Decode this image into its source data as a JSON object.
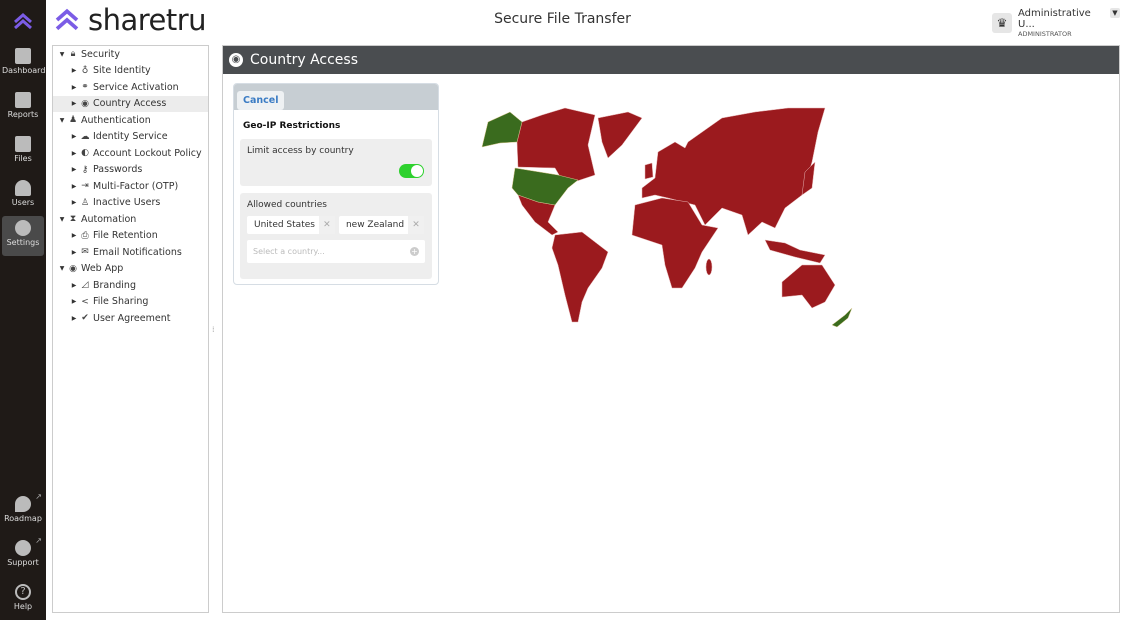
{
  "app": {
    "brand": "sharetru",
    "title": "Secure File Transfer"
  },
  "user": {
    "name": "Administrative U...",
    "role": "ADMINISTRATOR"
  },
  "rail": [
    {
      "label": "Dashboard"
    },
    {
      "label": "Reports"
    },
    {
      "label": "Files"
    },
    {
      "label": "Users"
    },
    {
      "label": "Settings",
      "active": true
    },
    {
      "label": "Roadmap"
    },
    {
      "label": "Support"
    },
    {
      "label": "Help"
    }
  ],
  "tree": [
    {
      "label": "Security",
      "level": 0,
      "icon": "lock-icon"
    },
    {
      "label": "Site Identity",
      "level": 1,
      "icon": "badge-icon"
    },
    {
      "label": "Service Activation",
      "level": 1,
      "icon": "link-icon"
    },
    {
      "label": "Country Access",
      "level": 1,
      "icon": "globe-icon",
      "selected": true
    },
    {
      "label": "Authentication",
      "level": 0,
      "icon": "user-key-icon"
    },
    {
      "label": "Identity Service",
      "level": 1,
      "icon": "cloud-icon"
    },
    {
      "label": "Account Lockout Policy",
      "level": 1,
      "icon": "shield-icon"
    },
    {
      "label": "Passwords",
      "level": 1,
      "icon": "key-icon"
    },
    {
      "label": "Multi-Factor (OTP)",
      "level": 1,
      "icon": "login-icon"
    },
    {
      "label": "Inactive Users",
      "level": 1,
      "icon": "user-clock-icon"
    },
    {
      "label": "Automation",
      "level": 0,
      "icon": "hourglass-icon"
    },
    {
      "label": "File Retention",
      "level": 1,
      "icon": "printer-icon"
    },
    {
      "label": "Email Notifications",
      "level": 1,
      "icon": "envelope-icon"
    },
    {
      "label": "Web App",
      "level": 0,
      "icon": "globe-icon"
    },
    {
      "label": "Branding",
      "level": 1,
      "icon": "brush-icon"
    },
    {
      "label": "File Sharing",
      "level": 1,
      "icon": "share-icon"
    },
    {
      "label": "User Agreement",
      "level": 1,
      "icon": "check-circle-icon"
    }
  ],
  "page": {
    "title": "Country Access",
    "cancel": "Cancel",
    "section": "Geo-IP Restrictions",
    "limit_label": "Limit access by country",
    "limit_enabled": true,
    "allowed_label": "Allowed countries",
    "allowed": [
      "United States",
      "new Zealand"
    ],
    "select_placeholder": "Select a country..."
  },
  "map": {
    "allowed_color": "#3a6b1e",
    "blocked_color": "#9b1a1e",
    "allowed_regions": [
      "United States",
      "New Zealand"
    ]
  }
}
